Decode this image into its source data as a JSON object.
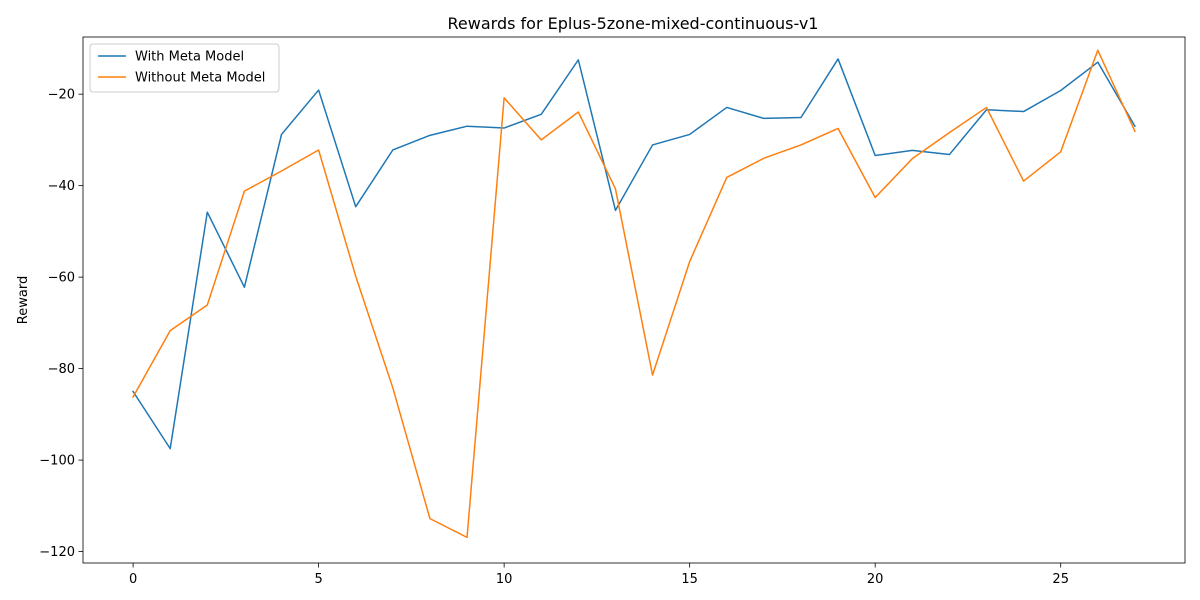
{
  "chart_data": {
    "type": "line",
    "title": "Rewards for Eplus-5zone-mixed-continuous-v1",
    "xlabel": "",
    "ylabel": "Reward",
    "xlim": [
      -1.35,
      28.35
    ],
    "ylim": [
      -122.5,
      -7.5
    ],
    "xticks": [
      0,
      5,
      10,
      15,
      20,
      25
    ],
    "yticks": [
      -120,
      -100,
      -80,
      -60,
      -40,
      -20
    ],
    "grid": false,
    "legend_position": "top-left",
    "x": [
      0,
      1,
      2,
      3,
      4,
      5,
      6,
      7,
      8,
      9,
      10,
      11,
      12,
      13,
      14,
      15,
      16,
      17,
      18,
      19,
      20,
      21,
      22,
      23,
      24,
      25,
      26,
      27
    ],
    "series": [
      {
        "name": "With Meta Model",
        "color": "#1f77b4",
        "values": [
          -85,
          -97.5,
          -45.8,
          -62.2,
          -28.8,
          -19.1,
          -44.6,
          -32.2,
          -29.0,
          -27.0,
          -27.4,
          -24.4,
          -12.5,
          -45.4,
          -31.1,
          -28.8,
          -22.9,
          -25.3,
          -25.1,
          -12.3,
          -33.4,
          -32.3,
          -33.2,
          -23.4,
          -23.8,
          -19.2,
          -13.0,
          -27.0
        ]
      },
      {
        "name": "Without Meta Model",
        "color": "#ff7f0e",
        "values": [
          -86.2,
          -71.7,
          -66.1,
          -41.2,
          -36.8,
          -32.2,
          -59.8,
          -84.2,
          -112.8,
          -116.9,
          -20.8,
          -30.0,
          -23.9,
          -40.7,
          -81.4,
          -56.6,
          -38.2,
          -34.0,
          -31.1,
          -27.5,
          -42.6,
          -34.1,
          -28.4,
          -22.9,
          -39.0,
          -32.6,
          -10.4,
          -28.1
        ]
      }
    ]
  }
}
